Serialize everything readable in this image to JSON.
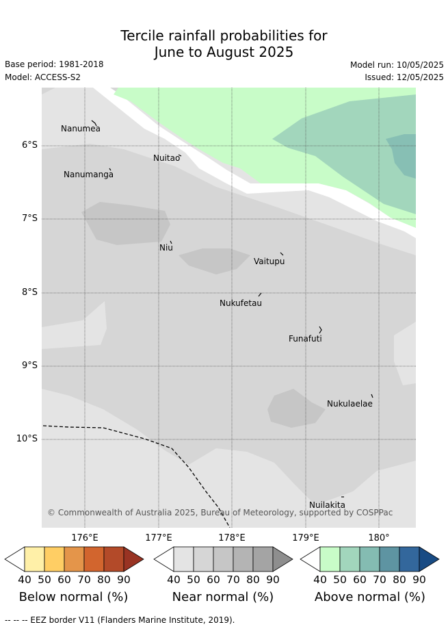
{
  "title": {
    "line1": "Tercile rainfall probabilities for",
    "line2": "June to August 2025"
  },
  "meta": {
    "base_period": "Base period: 1981-2018",
    "model": "Model: ACCESS-S2",
    "model_run": "Model run: 10/05/2025",
    "issued": "Issued: 12/05/2025"
  },
  "axes": {
    "lat_labels": [
      "6°S",
      "7°S",
      "8°S",
      "9°S",
      "10°S"
    ],
    "lon_labels": [
      "176°E",
      "177°E",
      "178°E",
      "179°E",
      "180°"
    ]
  },
  "places": [
    "Nanumea",
    "Nuitao",
    "Nanumanga",
    "Niu",
    "Vaitupu",
    "Nukufetau",
    "Funafuti",
    "Nukulaelae",
    "Nuilakita"
  ],
  "copyright": "© Commonwealth of Australia 2025, Bureau of Meteorology, supported by COSPPac",
  "colorbars": [
    {
      "name": "Below normal (%)",
      "ticks": [
        "40",
        "50",
        "60",
        "70",
        "80",
        "90"
      ],
      "colors": [
        "#fff0a8",
        "#ffce64",
        "#e4954a",
        "#d2652e",
        "#b34a29",
        "#993323"
      ]
    },
    {
      "name": "Near normal (%)",
      "ticks": [
        "40",
        "50",
        "60",
        "70",
        "80",
        "90"
      ],
      "colors": [
        "#e4e4e4",
        "#d6d6d6",
        "#c6c6c6",
        "#b4b4b4",
        "#a4a4a4",
        "#8e8e8e"
      ]
    },
    {
      "name": "Above normal (%)",
      "ticks": [
        "40",
        "50",
        "60",
        "70",
        "80",
        "90"
      ],
      "colors": [
        "#c8fcc8",
        "#a2d6bc",
        "#84bcb2",
        "#5e94a2",
        "#33679c",
        "#184b84"
      ]
    }
  ],
  "eez_legend": "-- -- -- EEZ border V11 (Flanders Marine Institute, 2019)."
}
